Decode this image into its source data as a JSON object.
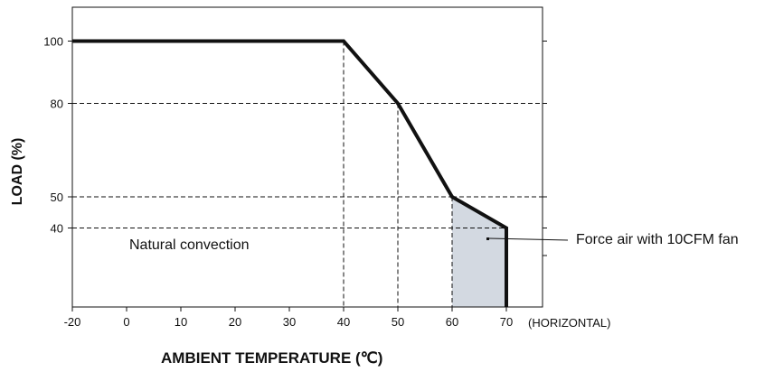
{
  "chart_data": {
    "type": "line",
    "xlabel": "AMBIENT TEMPERATURE (℃)",
    "ylabel": "LOAD (%)",
    "x_suffix_label": "(HORIZONTAL)",
    "xlim": [
      -20,
      70
    ],
    "ylim": [
      0,
      110
    ],
    "x_ticks": [
      -20,
      0,
      10,
      20,
      30,
      40,
      50,
      60,
      70
    ],
    "y_ticks": [
      40,
      50,
      80,
      100
    ],
    "series": [
      {
        "x": [
          -20,
          40,
          50,
          60,
          70,
          70
        ],
        "y": [
          100,
          100,
          80,
          50,
          40,
          0
        ]
      }
    ],
    "guides": [
      {
        "x": 40,
        "y": 100
      },
      {
        "x": 50,
        "y": 80
      },
      {
        "x": 60,
        "y": 50
      },
      {
        "x": 70,
        "y": 40
      }
    ],
    "shaded_region": {
      "x": [
        60,
        70
      ],
      "color": "#d3d9e1",
      "label": "Force air with 10CFM fan"
    },
    "annotations": [
      {
        "text": "Natural convection"
      }
    ],
    "grid": false,
    "line_color": "#111111"
  }
}
